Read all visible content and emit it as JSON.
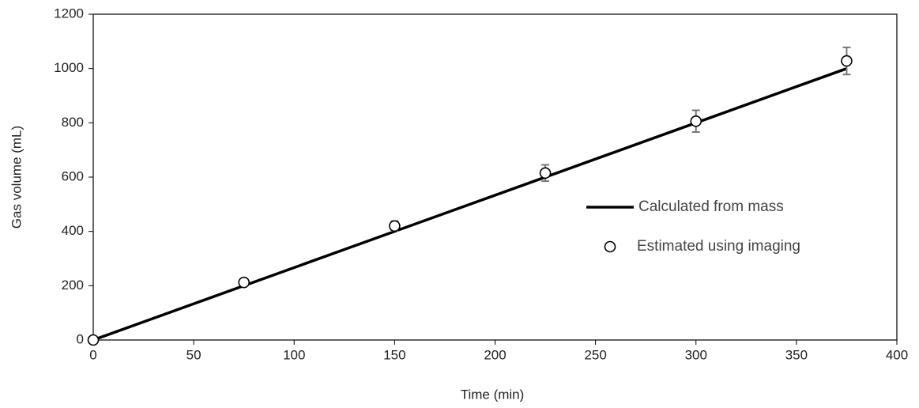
{
  "chart_data": {
    "type": "line",
    "x_label": "Time (min)",
    "y_label": "Gas volume (mL)",
    "xlim": [
      0,
      400
    ],
    "xticks": [
      0,
      50,
      100,
      150,
      200,
      250,
      300,
      350,
      400
    ],
    "ylim": [
      0,
      1200
    ],
    "yticks": [
      0,
      200,
      400,
      600,
      800,
      1000,
      1200
    ],
    "legend": "right",
    "series": [
      {
        "name": "Calculated from mass",
        "color": "#000000",
        "style": "line",
        "x": [
          0,
          375
        ],
        "values": [
          0,
          1000
        ]
      },
      {
        "name": "Estimated using imaging",
        "color": "#000000",
        "style": "marker",
        "x": [
          0,
          75,
          150,
          225,
          300,
          375
        ],
        "values": [
          0,
          212,
          420,
          615,
          806,
          1028
        ],
        "errors": [
          0,
          8,
          18,
          30,
          40,
          50
        ]
      }
    ]
  }
}
